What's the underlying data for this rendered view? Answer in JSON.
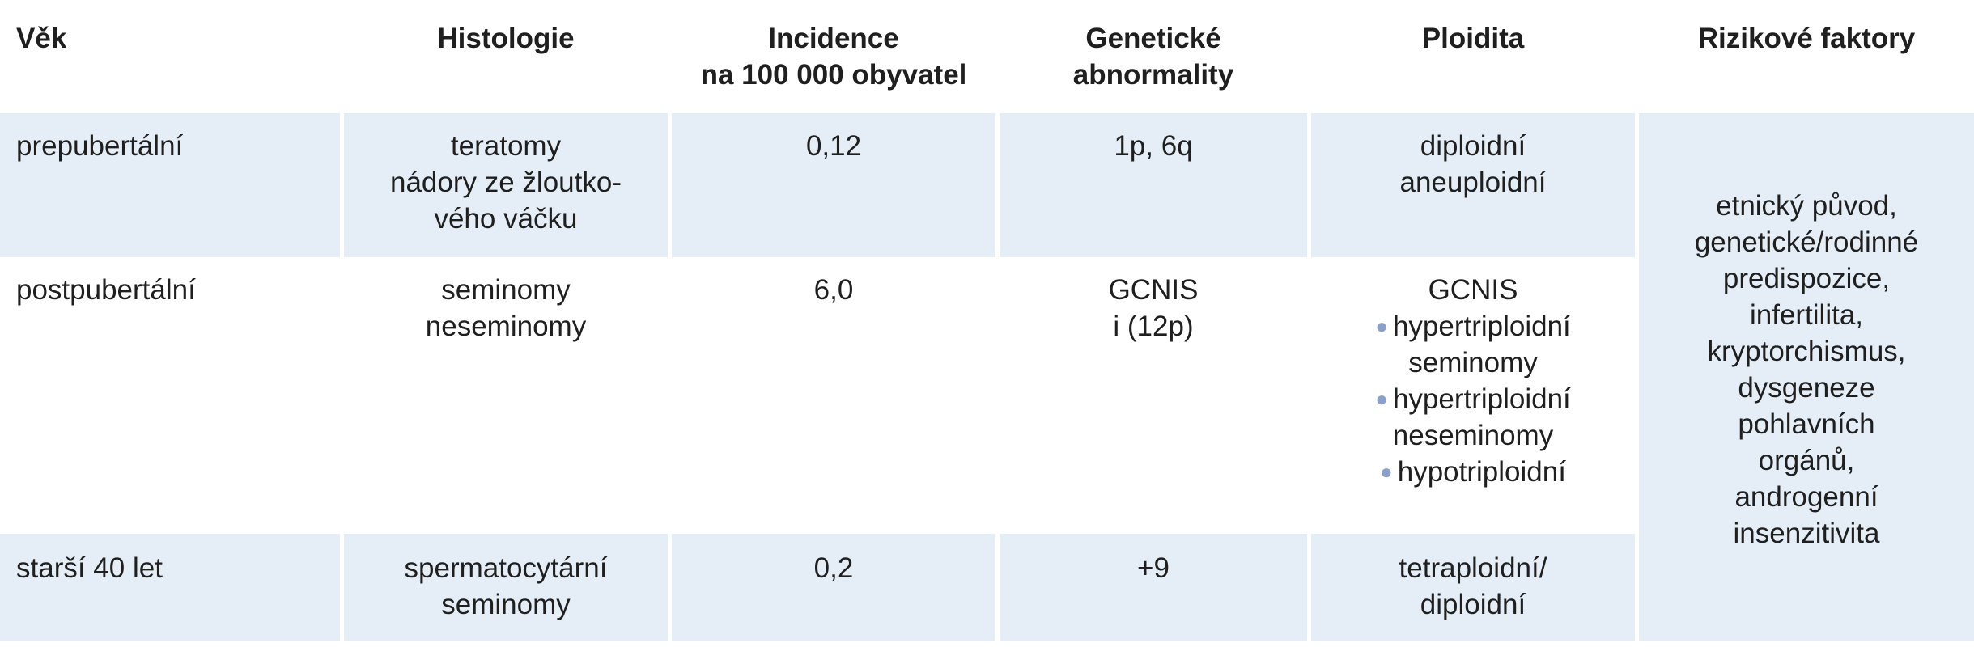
{
  "headers": {
    "age": "Věk",
    "histology": "Histologie",
    "incidence": [
      "Incidence",
      "na 100 000 obyvatel"
    ],
    "genetic": [
      "Genetické",
      "abnormality"
    ],
    "ploidy": "Ploidita",
    "risk": "Rizikové faktory"
  },
  "rows": [
    {
      "age": "prepubertální",
      "histology": [
        "teratomy",
        "nádory ze žloutko-",
        "vého váčku"
      ],
      "incidence": "0,12",
      "genetic": [
        "1p, 6q"
      ],
      "ploidy": [
        "diploidní",
        "aneuploidní"
      ]
    },
    {
      "age": "postpubertální",
      "histology": [
        "seminomy",
        "neseminomy"
      ],
      "incidence": "6,0",
      "genetic": [
        "GCNIS",
        "i (12p)"
      ],
      "ploidy_title": "GCNIS",
      "ploidy_bullets": [
        {
          "text": "hypertriploidní",
          "cont": "seminomy"
        },
        {
          "text": "hypertriploidní",
          "cont": "neseminomy"
        },
        {
          "text": "hypotriploidní",
          "cont": ""
        }
      ]
    },
    {
      "age": "starší 40 let",
      "histology": [
        "spermatocytární",
        "seminomy"
      ],
      "incidence": "0,2",
      "genetic": [
        "+9"
      ],
      "ploidy": [
        "tetraploidní/",
        "diploidní"
      ]
    }
  ],
  "risk_factors": [
    "etnický původ,",
    "genetické/rodinné",
    "predispozice,",
    "infertilita,",
    "kryptorchismus,",
    "dysgeneze",
    "pohlavních",
    "orgánů,",
    "androgenní",
    "insenzitivita"
  ]
}
